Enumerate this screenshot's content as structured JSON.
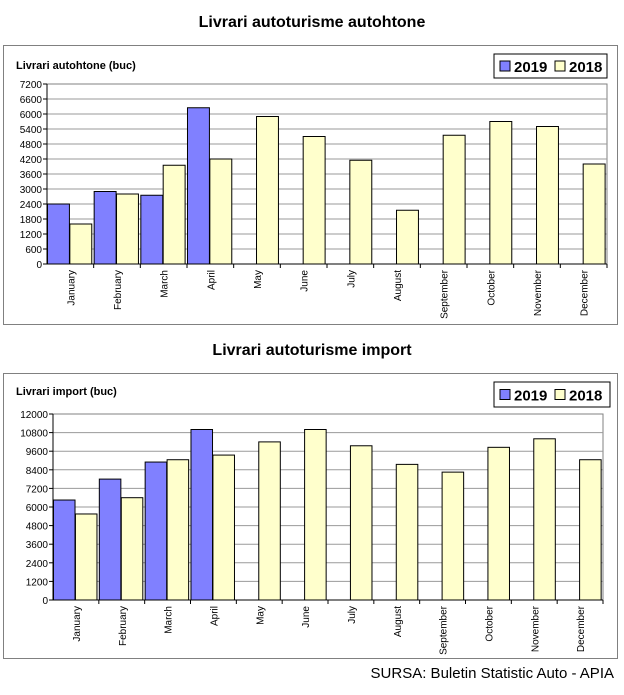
{
  "source": "SURSA: Buletin Statistic Auto - APIA",
  "chart_data": [
    {
      "type": "bar",
      "title": "Livrari autoturisme autohtone",
      "ylabel": "Livrari autohtone (buc)",
      "xlabel": "",
      "ylim": [
        0,
        7200
      ],
      "yticks": [
        0,
        600,
        1200,
        1800,
        2400,
        3000,
        3600,
        4200,
        4800,
        5400,
        6000,
        6600,
        7200
      ],
      "grid": true,
      "legend": "top-right",
      "categories": [
        "January",
        "February",
        "March",
        "April",
        "May",
        "June",
        "July",
        "August",
        "September",
        "October",
        "November",
        "December"
      ],
      "series": [
        {
          "name": "2019",
          "color": "#8080ff",
          "values": [
            2400,
            2900,
            2750,
            6250,
            null,
            null,
            null,
            null,
            null,
            null,
            null,
            null
          ]
        },
        {
          "name": "2018",
          "color": "#ffffcc",
          "values": [
            1600,
            2800,
            3950,
            4200,
            5900,
            5100,
            4150,
            2150,
            5150,
            5700,
            5500,
            4000
          ]
        }
      ]
    },
    {
      "type": "bar",
      "title": "Livrari autoturisme import",
      "ylabel": "Livrari import (buc)",
      "xlabel": "",
      "ylim": [
        0,
        12000
      ],
      "yticks": [
        0,
        1200,
        2400,
        3600,
        4800,
        6000,
        7200,
        8400,
        9600,
        10800,
        12000
      ],
      "grid": true,
      "legend": "top-right",
      "categories": [
        "January",
        "February",
        "March",
        "April",
        "May",
        "June",
        "July",
        "August",
        "September",
        "October",
        "November",
        "December"
      ],
      "series": [
        {
          "name": "2019",
          "color": "#8080ff",
          "values": [
            6450,
            7800,
            8900,
            11000,
            null,
            null,
            null,
            null,
            null,
            null,
            null,
            null
          ]
        },
        {
          "name": "2018",
          "color": "#ffffcc",
          "values": [
            5550,
            6600,
            9050,
            9350,
            10200,
            11000,
            9950,
            8750,
            8250,
            9850,
            10400,
            9050
          ]
        }
      ]
    }
  ]
}
